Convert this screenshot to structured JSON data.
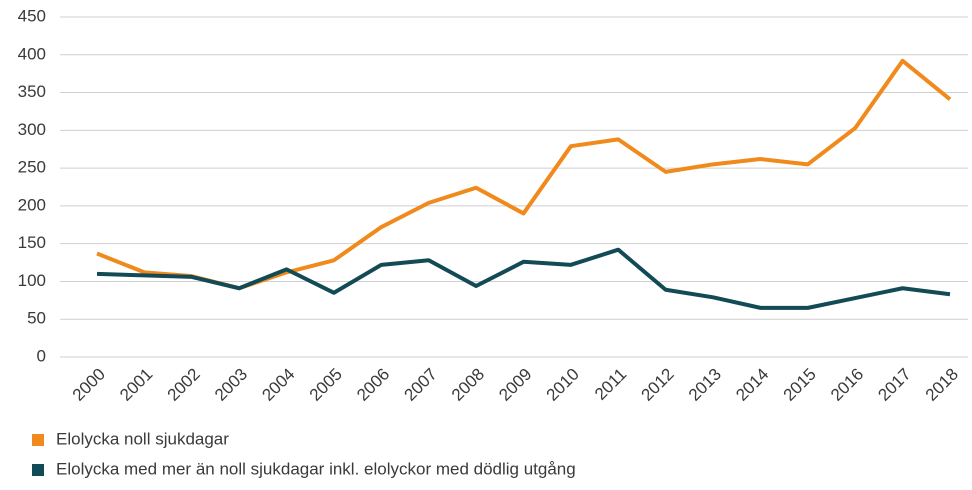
{
  "chart_data": {
    "type": "line",
    "categories": [
      "2000",
      "2001",
      "2002",
      "2003",
      "2004",
      "2005",
      "2006",
      "2007",
      "2008",
      "2009",
      "2010",
      "2011",
      "2012",
      "2013",
      "2014",
      "2015",
      "2016",
      "2017",
      "2018"
    ],
    "series": [
      {
        "name": "Elolycka noll sjukdagar",
        "color": "#f08a1c",
        "values": [
          137,
          112,
          107,
          91,
          112,
          128,
          172,
          204,
          224,
          190,
          279,
          288,
          245,
          255,
          262,
          255,
          303,
          392,
          341
        ]
      },
      {
        "name": "Elolycka med mer än noll sjukdagar inkl. elolyckor med dödlig utgång",
        "color": "#124a55",
        "values": [
          110,
          108,
          106,
          91,
          116,
          85,
          122,
          128,
          94,
          126,
          122,
          142,
          89,
          79,
          65,
          65,
          78,
          91,
          83
        ]
      }
    ],
    "ylim": [
      0,
      450
    ],
    "yticks": [
      0,
      50,
      100,
      150,
      200,
      250,
      300,
      350,
      400,
      450
    ],
    "grid": true
  }
}
